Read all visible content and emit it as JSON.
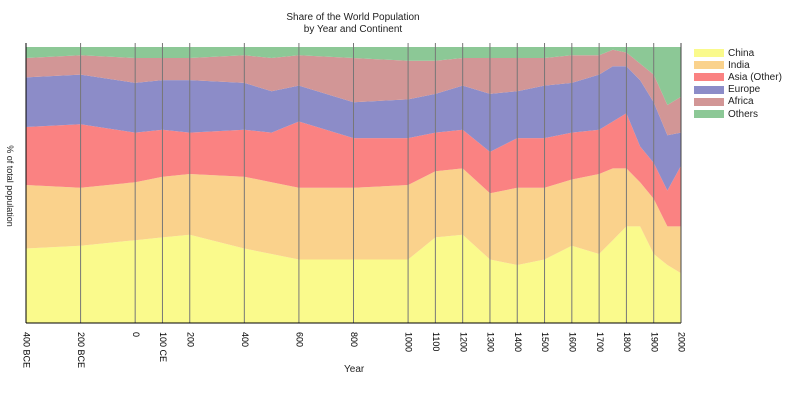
{
  "chart_data": {
    "type": "area",
    "stacked": "percent",
    "title_line1": "Share of the World Population",
    "title_line2": "by Year and Continent",
    "xlabel": "Year",
    "ylabel": "% of total population",
    "ylim": [
      0,
      100
    ],
    "legend_placement": "right",
    "x": [
      -400,
      -200,
      0,
      100,
      200,
      400,
      500,
      600,
      800,
      1000,
      1100,
      1200,
      1300,
      1400,
      1500,
      1600,
      1700,
      1750,
      1800,
      1850,
      1900,
      1950,
      2000
    ],
    "x_ticks": [
      {
        "x": -400,
        "label": "400 BCE"
      },
      {
        "x": -200,
        "label": "200 BCE"
      },
      {
        "x": 0,
        "label": "0"
      },
      {
        "x": 100,
        "label": "100 CE"
      },
      {
        "x": 200,
        "label": "200"
      },
      {
        "x": 400,
        "label": "400"
      },
      {
        "x": 600,
        "label": "600"
      },
      {
        "x": 800,
        "label": "800"
      },
      {
        "x": 1000,
        "label": "1000"
      },
      {
        "x": 1100,
        "label": "1100"
      },
      {
        "x": 1200,
        "label": "1200"
      },
      {
        "x": 1300,
        "label": "1300"
      },
      {
        "x": 1400,
        "label": "1400"
      },
      {
        "x": 1500,
        "label": "1500"
      },
      {
        "x": 1600,
        "label": "1600"
      },
      {
        "x": 1700,
        "label": "1700"
      },
      {
        "x": 1800,
        "label": "1800"
      },
      {
        "x": 1900,
        "label": "1900"
      },
      {
        "x": 2000,
        "label": "2000"
      }
    ],
    "series": [
      {
        "name": "China",
        "color": "#fafa8c",
        "values": [
          27,
          28,
          30,
          31,
          32,
          27,
          25,
          23,
          23,
          23,
          31,
          32,
          23,
          21,
          23,
          28,
          25,
          30,
          35,
          35,
          25,
          21,
          18
        ]
      },
      {
        "name": "India",
        "color": "#fad28c",
        "values": [
          23,
          21,
          21,
          22,
          22,
          26,
          26,
          26,
          26,
          27,
          24,
          24,
          24,
          28,
          26,
          24,
          29,
          26,
          21,
          16,
          20,
          14,
          17
        ]
      },
      {
        "name": "Asia (Other)",
        "color": "#fa8282",
        "values": [
          21,
          23,
          18,
          17,
          15,
          17,
          18,
          24,
          18,
          17,
          14,
          14,
          15,
          18,
          18,
          17,
          16,
          17,
          20,
          13,
          13,
          13,
          22
        ]
      },
      {
        "name": "Europe",
        "color": "#8c8cc8",
        "values": [
          18,
          18,
          18,
          18,
          19,
          17,
          15,
          13,
          13,
          14,
          14,
          16,
          21,
          17,
          19,
          18,
          20,
          20,
          17,
          24,
          22,
          20,
          12
        ]
      },
      {
        "name": "Africa",
        "color": "#d29696",
        "values": [
          7,
          7,
          9,
          8,
          8,
          10,
          12,
          11,
          16,
          14,
          12,
          10,
          13,
          12,
          10,
          10,
          7,
          6,
          5,
          6,
          10,
          11,
          13
        ]
      },
      {
        "name": "Others",
        "color": "#8cc896",
        "values": [
          4,
          3,
          4,
          4,
          4,
          3,
          4,
          3,
          4,
          5,
          5,
          4,
          4,
          4,
          4,
          3,
          3,
          1,
          2,
          6,
          10,
          21,
          18
        ]
      }
    ]
  }
}
